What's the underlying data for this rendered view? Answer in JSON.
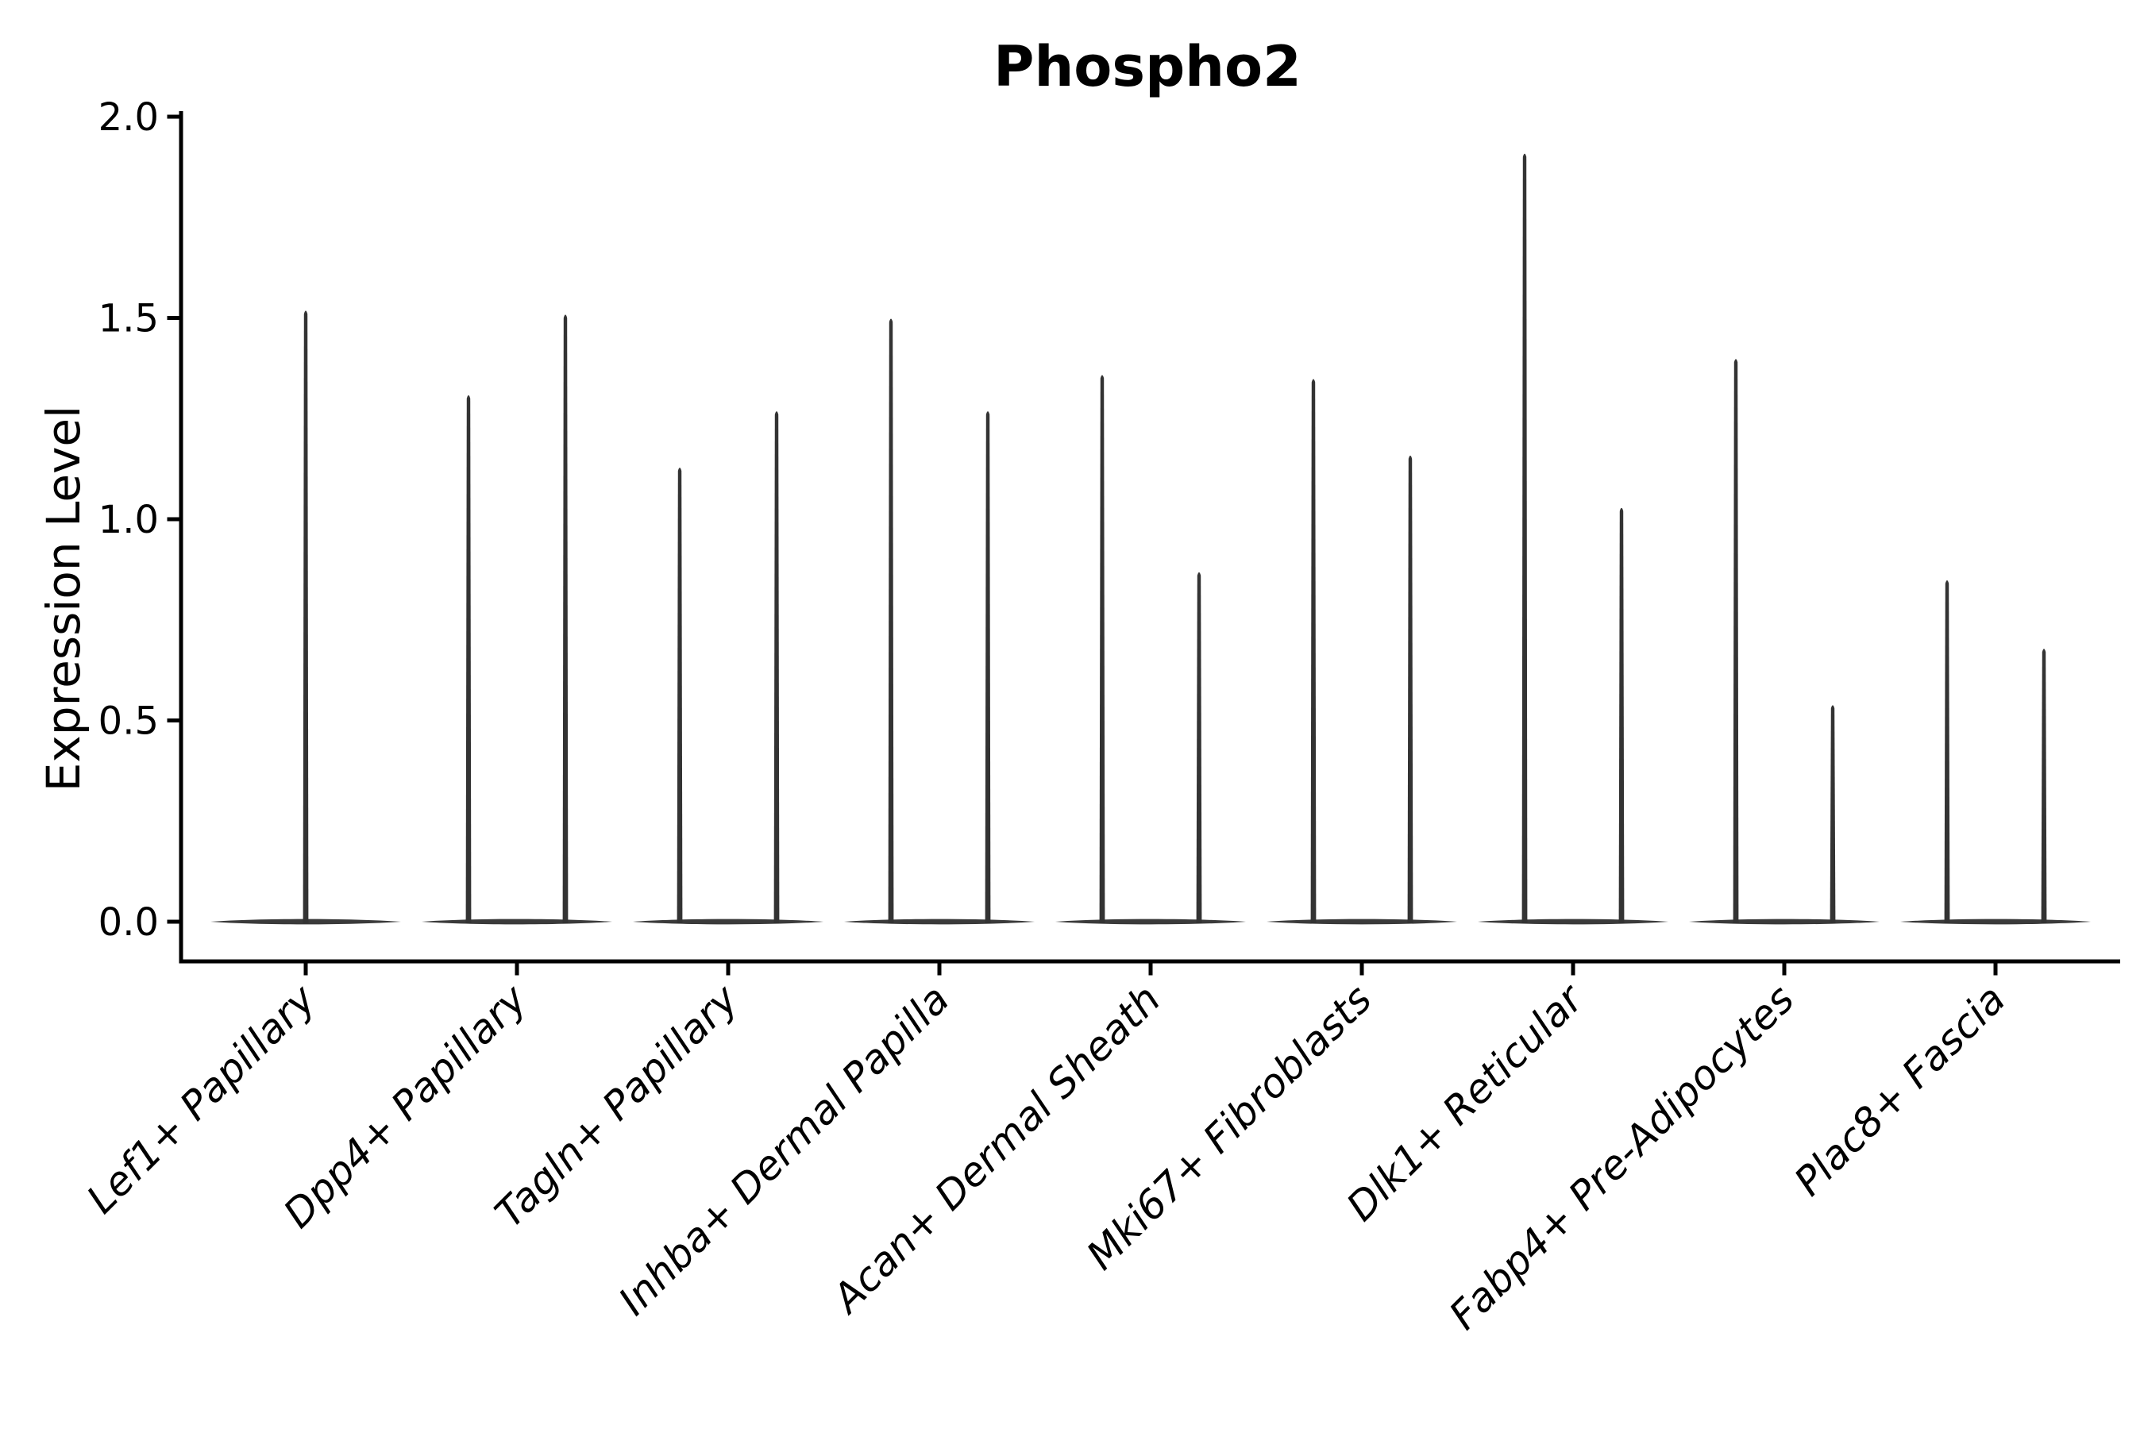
{
  "figure": {
    "background": "#ffffff"
  },
  "colors": {
    "violin": "#333333",
    "violin_base": "#3a3a3a",
    "axis": "#000000",
    "text": "#000000",
    "background": "#ffffff"
  },
  "chart_data": {
    "type": "violin",
    "title": "Phospho2",
    "xlabel": "",
    "ylabel": "Expression Level",
    "ylim": [
      -0.1,
      2.0
    ],
    "yticks": [
      0.0,
      0.5,
      1.0,
      1.5,
      2.0
    ],
    "ytick_labels": [
      "0.0",
      "0.5",
      "1.0",
      "1.5",
      "2.0"
    ],
    "grid": false,
    "legend": null,
    "x_tick_rotation_deg": 45,
    "violin_shape": "density concentrated at 0 (wide flat base) with a thin spike rising to the peak expression value",
    "categories": [
      "Lef1+ Papillary",
      "Dpp4+ Papillary",
      "Tagln+ Papillary",
      "Inhba+ Dermal Papilla",
      "Acan+ Dermal Sheath",
      "Mki67+ Fibroblasts",
      "Dlk1+ Reticular",
      "Fabp4+ Pre-Adipocytes",
      "Plac8+ Fascia"
    ],
    "groups": [
      {
        "category": "Lef1+ Papillary",
        "violins": [
          {
            "position": "center",
            "peak_expression": 1.52
          }
        ]
      },
      {
        "category": "Dpp4+ Papillary",
        "violins": [
          {
            "position": "left",
            "peak_expression": 1.31
          },
          {
            "position": "right",
            "peak_expression": 1.51
          }
        ]
      },
      {
        "category": "Tagln+ Papillary",
        "violins": [
          {
            "position": "left",
            "peak_expression": 1.13
          },
          {
            "position": "right",
            "peak_expression": 1.27
          }
        ]
      },
      {
        "category": "Inhba+ Dermal Papilla",
        "violins": [
          {
            "position": "left",
            "peak_expression": 1.5
          },
          {
            "position": "right",
            "peak_expression": 1.27
          }
        ]
      },
      {
        "category": "Acan+ Dermal Sheath",
        "violins": [
          {
            "position": "left",
            "peak_expression": 1.36
          },
          {
            "position": "right",
            "peak_expression": 0.87
          }
        ]
      },
      {
        "category": "Mki67+ Fibroblasts",
        "violins": [
          {
            "position": "left",
            "peak_expression": 1.35
          },
          {
            "position": "right",
            "peak_expression": 1.16
          }
        ]
      },
      {
        "category": "Dlk1+ Reticular",
        "violins": [
          {
            "position": "left",
            "peak_expression": 1.91
          },
          {
            "position": "right",
            "peak_expression": 1.03
          }
        ]
      },
      {
        "category": "Fabp4+ Pre-Adipocytes",
        "violins": [
          {
            "position": "left",
            "peak_expression": 1.4
          },
          {
            "position": "right",
            "peak_expression": 0.54
          }
        ]
      },
      {
        "category": "Plac8+ Fascia",
        "violins": [
          {
            "position": "left",
            "peak_expression": 0.85
          },
          {
            "position": "right",
            "peak_expression": 0.68
          }
        ]
      }
    ]
  }
}
